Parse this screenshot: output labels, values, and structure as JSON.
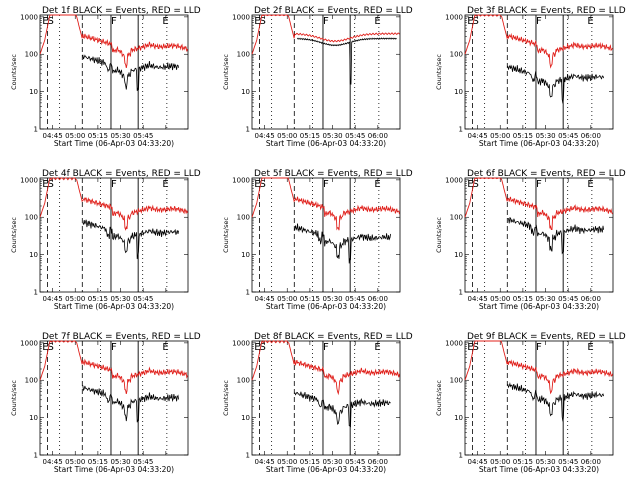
{
  "chart_data": {
    "type": "line",
    "y_scale": "log",
    "ylim": [
      1,
      1000
    ],
    "y_ticks": [
      "1",
      "10",
      "100",
      "1000"
    ],
    "ylabel": "Counts/sec",
    "xlabel": "Start Time (06-Apr-03 04:33:20)",
    "x_ticks": [
      "04:45",
      "05:00",
      "05:15",
      "05:30",
      "05:45",
      "06:00"
    ],
    "markers": [
      "E",
      "S",
      "F",
      "E"
    ],
    "colors": {
      "events": "#000000",
      "lld": "#e0201b"
    },
    "panels": [
      {
        "title": "Det 1f BLACK = Events, RED = LLD"
      },
      {
        "title": "Det 2f BLACK = Events, RED = LLD"
      },
      {
        "title": "Det 3f BLACK = Events, RED = LLD"
      },
      {
        "title": "Det 4f BLACK = Events, RED = LLD"
      },
      {
        "title": "Det 5f BLACK = Events, RED = LLD"
      },
      {
        "title": "Det 6f BLACK = Events, RED = LLD"
      },
      {
        "title": "Det 7f BLACK = Events, RED = LLD"
      },
      {
        "title": "Det 8f BLACK = Events, RED = LLD"
      },
      {
        "title": "Det 9f BLACK = Events, RED = LLD"
      }
    ]
  }
}
